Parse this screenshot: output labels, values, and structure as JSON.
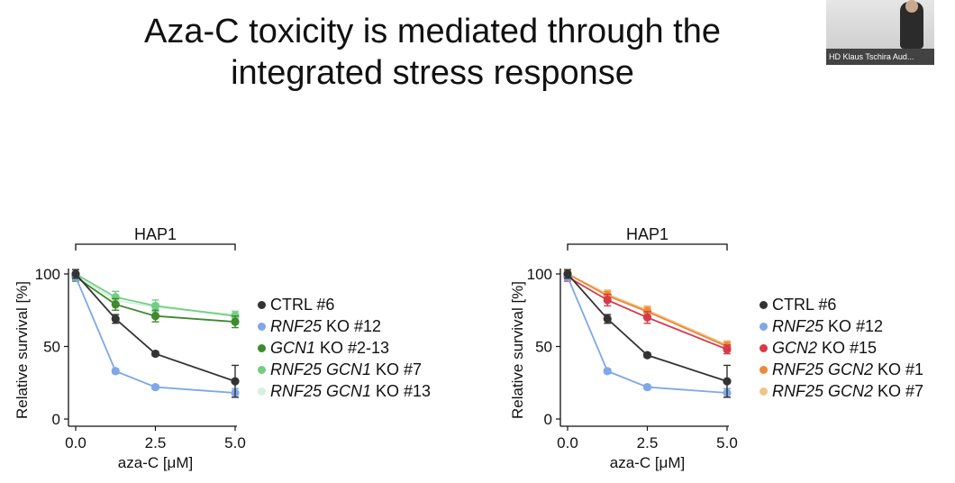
{
  "slide": {
    "title_line1": "Aza-C toxicity is mediated through the",
    "title_line2": "integrated stress response"
  },
  "video": {
    "caption": "HD Klaus Tschira Aud..."
  },
  "colors": {
    "ctrl": "#333333",
    "rnf25": "#7ea8e6",
    "gcn1": "#3e8a2e",
    "rnf25_gcn1_7": "#72cf82",
    "rnf25_gcn1_13": "#d6efe0",
    "gcn2": "#d63a4a",
    "rnf25_gcn2_1": "#ec8a3a",
    "rnf25_gcn2_7": "#efc486"
  },
  "chart_data": [
    {
      "type": "line",
      "title": "HAP1",
      "xlabel": "aza-C [μM]",
      "ylabel": "Relative survival [%]",
      "xlim": [
        0,
        5
      ],
      "ylim": [
        0,
        100
      ],
      "xticks": [
        "0.0",
        "2.5",
        "5.0"
      ],
      "yticks": [
        "0",
        "50",
        "100"
      ],
      "grid": false,
      "legend_position": "right",
      "x": [
        0,
        1.25,
        2.5,
        5.0
      ],
      "series": [
        {
          "name": "CTRL #6",
          "values": [
            100,
            69,
            45,
            26
          ],
          "err": [
            3,
            3,
            1.5,
            11
          ],
          "color_key": "ctrl"
        },
        {
          "name": "RNF25 KO #12",
          "values": [
            98,
            33,
            22,
            18
          ],
          "err": [
            2,
            1.5,
            1.5,
            3
          ],
          "color_key": "rnf25"
        },
        {
          "name": "GCN1 KO #2-13",
          "values": [
            98,
            79,
            71,
            67
          ],
          "err": [
            3,
            4,
            4,
            4
          ],
          "color_key": "gcn1"
        },
        {
          "name": "RNF25 GCN1 KO #7",
          "values": [
            100,
            84,
            78,
            71
          ],
          "err": [
            3,
            4,
            4,
            3
          ],
          "color_key": "rnf25_gcn1_7"
        },
        {
          "name": "RNF25 GCN1 KO #13",
          "values": [
            99,
            82,
            77,
            72
          ],
          "err": [
            2,
            3,
            3,
            3
          ],
          "color_key": "rnf25_gcn1_13"
        }
      ]
    },
    {
      "type": "line",
      "title": "HAP1",
      "xlabel": "aza-C [μM]",
      "ylabel": "Relative survival [%]",
      "xlim": [
        0,
        5
      ],
      "ylim": [
        0,
        100
      ],
      "xticks": [
        "0.0",
        "2.5",
        "5.0"
      ],
      "yticks": [
        "0",
        "50",
        "100"
      ],
      "grid": false,
      "legend_position": "right",
      "x": [
        0,
        1.25,
        2.5,
        5.0
      ],
      "series": [
        {
          "name": "CTRL #6",
          "values": [
            100,
            69,
            44,
            26
          ],
          "err": [
            3,
            3,
            1.5,
            11
          ],
          "color_key": "ctrl"
        },
        {
          "name": "RNF25 KO #12",
          "values": [
            98,
            33,
            22,
            18
          ],
          "err": [
            2,
            1.5,
            1.5,
            3
          ],
          "color_key": "rnf25"
        },
        {
          "name": "GCN2 KO #15",
          "values": [
            98,
            82,
            70,
            48
          ],
          "err": [
            3,
            4,
            4,
            3
          ],
          "color_key": "gcn2"
        },
        {
          "name": "RNF25 GCN2 KO #1",
          "values": [
            100,
            85,
            74,
            50
          ],
          "err": [
            2,
            3,
            3,
            3
          ],
          "color_key": "rnf25_gcn2_1"
        },
        {
          "name": "RNF25 GCN2 KO #7",
          "values": [
            100,
            86,
            75,
            51
          ],
          "err": [
            2,
            3,
            3,
            3
          ],
          "color_key": "rnf25_gcn2_7"
        }
      ]
    }
  ],
  "legends": [
    [
      {
        "italic": "",
        "rest": "CTRL #6"
      },
      {
        "italic": "RNF25",
        "rest": " KO #12"
      },
      {
        "italic": "GCN1",
        "rest": " KO #2-13"
      },
      {
        "italic": "RNF25 GCN1",
        "rest": " KO #7"
      },
      {
        "italic": "RNF25 GCN1",
        "rest": " KO #13"
      }
    ],
    [
      {
        "italic": "",
        "rest": "CTRL #6"
      },
      {
        "italic": "RNF25",
        "rest": " KO #12"
      },
      {
        "italic": "GCN2",
        "rest": " KO #15"
      },
      {
        "italic": "RNF25 GCN2",
        "rest": " KO #1"
      },
      {
        "italic": "RNF25 GCN2",
        "rest": " KO #7"
      }
    ]
  ]
}
